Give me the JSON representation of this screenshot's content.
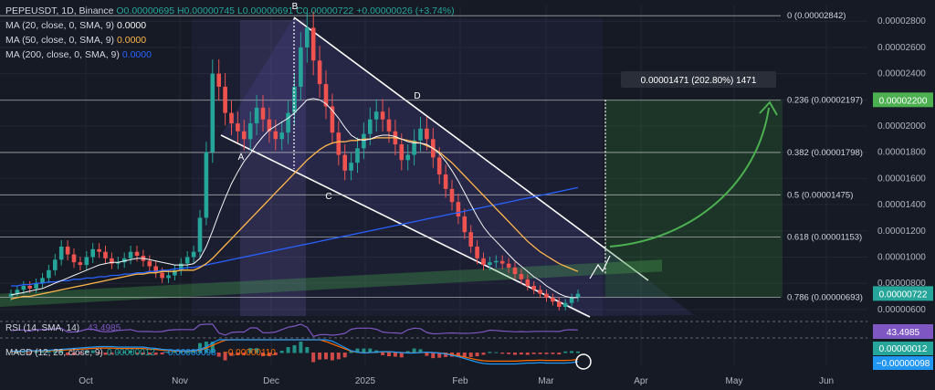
{
  "header": {
    "symbol": "PEPEUSDT, 1D, Binance",
    "open": "O0.00000695",
    "high": "H0.00000745",
    "low": "L0.00000691",
    "close": "C0.00000722",
    "change": "+0.00000026 (+3.74%)"
  },
  "indicators": [
    {
      "label": "MA (20, close, 0, SMA, 9)",
      "value": "0.0000",
      "color": "#f5f5f5"
    },
    {
      "label": "MA (50, close, 0, SMA, 9)",
      "value": "0.0000",
      "color": "#ffb74d"
    },
    {
      "label": "MA (200, close, 0, SMA, 9)",
      "value": "0.0000",
      "color": "#2962ff"
    }
  ],
  "chart_data": {
    "type": "candlestick",
    "x_ticks": [
      "Oct",
      "Nov",
      "Dec",
      "2025",
      "Feb",
      "Mar",
      "Apr",
      "May",
      "Jun"
    ],
    "y_ticks": [
      "0.00002800",
      "0.00002600",
      "0.00002400",
      "0.00002200",
      "0.00002000",
      "0.00001800",
      "0.00001600",
      "0.00001400",
      "0.00001200",
      "0.00001000",
      "0.00000800",
      "0.00000600"
    ],
    "ylim": [
      5.5e-06,
      2.92e-05
    ],
    "fib_levels": [
      {
        "label": "0 (0.00002842)",
        "value": 2.842e-05
      },
      {
        "label": "0.236 (0.00002197)",
        "value": 2.197e-05
      },
      {
        "label": "0.382 (0.00001798)",
        "value": 1.798e-05
      },
      {
        "label": "0.5 (0.00001475)",
        "value": 1.475e-05
      },
      {
        "label": "0.618 (0.00001153)",
        "value": 1.153e-05
      },
      {
        "label": "0.786 (0.00000693)",
        "value": 6.93e-06
      }
    ],
    "price_tags": [
      {
        "text": "0.00002200",
        "value": 2.2e-05,
        "color": "#4caf50"
      },
      {
        "text": "0.00000722",
        "value": 7.22e-06,
        "color": "#26a69a"
      }
    ],
    "measure_label": "0.00001471 (202.80%) 1471",
    "pattern_points": [
      "A",
      "B",
      "C",
      "D"
    ],
    "closes": [
      7.2e-06,
      7.5e-06,
      7.8e-06,
      7.6e-06,
      8e-06,
      8.4e-06,
      9e-06,
      9.8e-06,
      1.08e-05,
      1.02e-05,
      9.6e-06,
      9.4e-06,
      1e-05,
      1.06e-05,
      1.04e-05,
      9.9e-06,
      9.5e-06,
      9.6e-06,
      9.9e-06,
      1.04e-05,
      1.01e-05,
      9.7e-06,
      9.3e-06,
      8.8e-06,
      8.4e-06,
      8.6e-06,
      9e-06,
      9.5e-06,
      1e-05,
      1.04e-05,
      1.3e-05,
      1.8e-05,
      2.4e-05,
      2.3e-05,
      2.1e-05,
      2.02e-05,
      1.96e-05,
      1.9e-05,
      2.02e-05,
      2.14e-05,
      2.05e-05,
      1.96e-05,
      1.9e-05,
      1.95e-05,
      2.1e-05,
      2.3e-05,
      2.6e-05,
      2.75e-05,
      2.5e-05,
      2.32e-05,
      2.15e-05,
      1.95e-05,
      1.78e-05,
      1.66e-05,
      1.72e-05,
      1.83e-05,
      1.94e-05,
      2.05e-05,
      2.11e-05,
      2.05e-05,
      1.96e-05,
      1.86e-05,
      1.74e-05,
      1.78e-05,
      1.89e-05,
      1.98e-05,
      1.9e-05,
      1.76e-05,
      1.63e-05,
      1.52e-05,
      1.42e-05,
      1.31e-05,
      1.19e-05,
      1.08e-05,
      9.9e-06,
      9.4e-06,
      9.6e-06,
      9.7e-06,
      9.5e-06,
      9.2e-06,
      8.7e-06,
      8.3e-06,
      7.8e-06,
      7.5e-06,
      7.2e-06,
      6.9e-06,
      6.6e-06,
      6.2e-06,
      6.5e-06,
      6.9e-06,
      7.2e-06
    ],
    "ma20": [
      7.1e-06,
      7.2e-06,
      7.3e-06,
      7.4e-06,
      7.5e-06,
      7.6e-06,
      7.8e-06,
      8e-06,
      8.2e-06,
      8.4e-06,
      8.6e-06,
      8.8e-06,
      9e-06,
      9.2e-06,
      9.4e-06,
      9.5e-06,
      9.6e-06,
      9.6e-06,
      9.7e-06,
      9.8e-06,
      9.9e-06,
      9.9e-06,
      9.8e-06,
      9.7e-06,
      9.6e-06,
      9.5e-06,
      9.4e-06,
      9.4e-06,
      9.4e-06,
      9.5e-06,
      9.9e-06,
      1.08e-05,
      1.2e-05,
      1.33e-05,
      1.45e-05,
      1.56e-05,
      1.65e-05,
      1.73e-05,
      1.79e-05,
      1.86e-05,
      1.92e-05,
      1.97e-05,
      2e-05,
      2.03e-05,
      2.06e-05,
      2.1e-05,
      2.15e-05,
      2.2e-05,
      2.21e-05,
      2.2e-05,
      2.17e-05,
      2.12e-05,
      2.06e-05,
      1.99e-05,
      1.93e-05,
      1.9e-05,
      1.89e-05,
      1.9e-05,
      1.92e-05,
      1.93e-05,
      1.93e-05,
      1.92e-05,
      1.9e-05,
      1.88e-05,
      1.87e-05,
      1.87e-05,
      1.86e-05,
      1.83e-05,
      1.79e-05,
      1.73e-05,
      1.66e-05,
      1.58e-05,
      1.49e-05,
      1.4e-05,
      1.31e-05,
      1.23e-05,
      1.17e-05,
      1.12e-05,
      1.07e-05,
      1.02e-05,
      9.7e-06,
      9.3e-06,
      8.9e-06,
      8.5e-06,
      8.2e-06,
      7.8e-06,
      7.5e-06,
      7.2e-06,
      7e-06,
      6.9e-06,
      6.9e-06
    ],
    "ma50": [
      6.8e-06,
      6.9e-06,
      7e-06,
      7e-06,
      7.1e-06,
      7.2e-06,
      7.3e-06,
      7.4e-06,
      7.5e-06,
      7.6e-06,
      7.7e-06,
      7.8e-06,
      7.9e-06,
      8e-06,
      8.1e-06,
      8.2e-06,
      8.3e-06,
      8.4e-06,
      8.5e-06,
      8.6e-06,
      8.7e-06,
      8.7e-06,
      8.8e-06,
      8.8e-06,
      8.9e-06,
      8.9e-06,
      8.9e-06,
      9e-06,
      9e-06,
      9e-06,
      9.2e-06,
      9.5e-06,
      9.9e-06,
      1.04e-05,
      1.09e-05,
      1.14e-05,
      1.19e-05,
      1.24e-05,
      1.29e-05,
      1.34e-05,
      1.39e-05,
      1.44e-05,
      1.49e-05,
      1.54e-05,
      1.59e-05,
      1.64e-05,
      1.69e-05,
      1.74e-05,
      1.78e-05,
      1.82e-05,
      1.85e-05,
      1.87e-05,
      1.88e-05,
      1.88e-05,
      1.89e-05,
      1.89e-05,
      1.9e-05,
      1.9e-05,
      1.91e-05,
      1.91e-05,
      1.91e-05,
      1.91e-05,
      1.9e-05,
      1.89e-05,
      1.88e-05,
      1.87e-05,
      1.85e-05,
      1.83e-05,
      1.8e-05,
      1.76e-05,
      1.72e-05,
      1.67e-05,
      1.62e-05,
      1.57e-05,
      1.52e-05,
      1.47e-05,
      1.42e-05,
      1.37e-05,
      1.32e-05,
      1.27e-05,
      1.22e-05,
      1.17e-05,
      1.12e-05,
      1.08e-05,
      1.04e-05,
      1.01e-05,
      9.8e-06,
      9.5e-06,
      9.3e-06,
      9.1e-06,
      8.9e-06
    ],
    "ma200": [
      7.8e-06,
      7.8e-06,
      7.9e-06,
      7.9e-06,
      8e-06,
      8e-06,
      8.1e-06,
      8.1e-06,
      8.2e-06,
      8.2e-06,
      8.3e-06,
      8.3e-06,
      8.4e-06,
      8.4e-06,
      8.5e-06,
      8.5e-06,
      8.6e-06,
      8.6e-06,
      8.7e-06,
      8.7e-06,
      8.8e-06,
      8.8e-06,
      8.9e-06,
      8.9e-06,
      9e-06,
      9e-06,
      9.1e-06,
      9.1e-06,
      9.2e-06,
      9.2e-06,
      9.3e-06,
      9.4e-06,
      9.5e-06,
      9.6e-06,
      9.7e-06,
      9.8e-06,
      9.9e-06,
      1e-05,
      1.01e-05,
      1.02e-05,
      1.03e-05,
      1.04e-05,
      1.05e-05,
      1.06e-05,
      1.07e-05,
      1.08e-05,
      1.09e-05,
      1.1e-05,
      1.11e-05,
      1.12e-05,
      1.13e-05,
      1.14e-05,
      1.15e-05,
      1.16e-05,
      1.17e-05,
      1.18e-05,
      1.19e-05,
      1.2e-05,
      1.21e-05,
      1.22e-05,
      1.23e-05,
      1.24e-05,
      1.25e-05,
      1.26e-05,
      1.27e-05,
      1.28e-05,
      1.29e-05,
      1.3e-05,
      1.31e-05,
      1.32e-05,
      1.33e-05,
      1.34e-05,
      1.35e-05,
      1.36e-05,
      1.37e-05,
      1.38e-05,
      1.39e-05,
      1.4e-05,
      1.41e-05,
      1.42e-05,
      1.43e-05,
      1.44e-05,
      1.45e-05,
      1.46e-05,
      1.47e-05,
      1.48e-05,
      1.49e-05,
      1.5e-05,
      1.51e-05,
      1.52e-05,
      1.53e-05
    ]
  },
  "rsi": {
    "label": "RSI (14, SMA, 14)",
    "value": "43.4985",
    "tag": "43.4985"
  },
  "macd": {
    "label": "MACD (12, 26, close, 9)",
    "v1": "0.00000012",
    "v2": "−0.00000098",
    "v3": "−0.00000110",
    "tag1": "0.00000012",
    "tag2": "−0.00000098"
  },
  "colors": {
    "background": "#161a25",
    "bull": "#26a69a",
    "bear": "#ef5350",
    "ma20": "#f5f5f5",
    "ma50": "#ffb74d",
    "ma200": "#2962ff",
    "rsi": "#7e57c2",
    "macd": "#2196f3",
    "signal": "#ff6d00"
  }
}
